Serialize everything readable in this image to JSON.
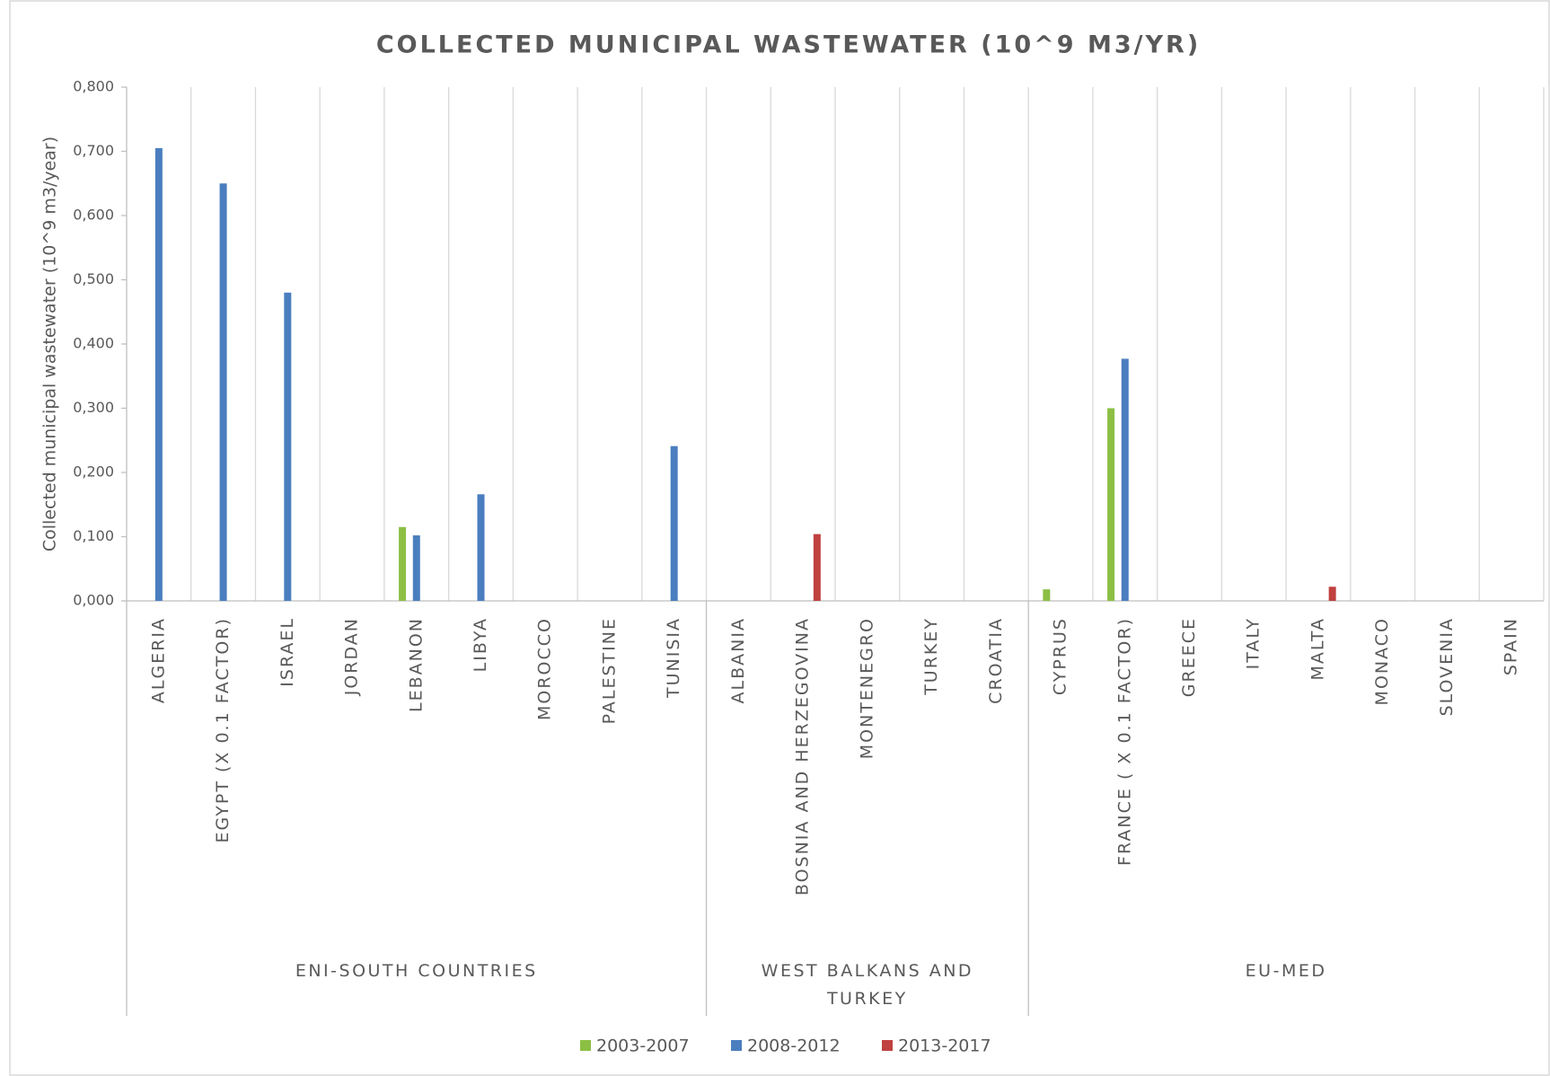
{
  "chart_data": {
    "type": "bar",
    "title": "COLLECTED  MUNICIPAL  WASTEWATER  (10^9  M3/YR)",
    "y_label": "Collected municipal wastewater (10^9 m3/year)",
    "groups": [
      {
        "name": "ENI-SOUTH COUNTRIES",
        "categories": [
          "ALGERIA",
          "EGYPT (X 0.1 FACTOR)",
          "ISRAEL",
          "JORDAN",
          "LEBANON",
          "LIBYA",
          "MOROCCO",
          "PALESTINE",
          "TUNISIA"
        ]
      },
      {
        "name": "WEST BALKANS AND TURKEY",
        "categories": [
          "ALBANIA",
          "BOSNIA AND HERZEGOVINA",
          "MONTENEGRO",
          "TURKEY",
          "CROATIA"
        ]
      },
      {
        "name": "EU-MED",
        "categories": [
          "CYPRUS",
          "FRANCE ( X 0.1 FACTOR)",
          "GREECE",
          "ITALY",
          "MALTA",
          "MONACO",
          "SLOVENIA",
          "SPAIN"
        ]
      }
    ],
    "series": [
      {
        "name": "2003-2007",
        "color": "#8cbf44",
        "values": [
          null,
          null,
          null,
          null,
          0.115,
          null,
          null,
          null,
          null,
          null,
          null,
          null,
          null,
          null,
          0.018,
          0.3,
          null,
          null,
          null,
          null,
          null,
          null
        ]
      },
      {
        "name": "2008-2012",
        "color": "#4a7ebf",
        "values": [
          0.705,
          0.65,
          0.48,
          null,
          0.102,
          0.166,
          null,
          null,
          0.241,
          null,
          null,
          null,
          null,
          null,
          null,
          0.377,
          null,
          null,
          null,
          null,
          null,
          null
        ]
      },
      {
        "name": "2013-2017",
        "color": "#c0413f",
        "values": [
          null,
          null,
          null,
          null,
          null,
          null,
          null,
          null,
          null,
          null,
          0.104,
          null,
          null,
          null,
          null,
          null,
          null,
          null,
          0.022,
          null,
          null,
          null
        ]
      }
    ],
    "ylim": [
      0,
      0.8
    ],
    "yticks": [
      {
        "value": 0,
        "label": "0,000"
      },
      {
        "value": 0.1,
        "label": "0,100"
      },
      {
        "value": 0.2,
        "label": "0,200"
      },
      {
        "value": 0.3,
        "label": "0,300"
      },
      {
        "value": 0.4,
        "label": "0,400"
      },
      {
        "value": 0.5,
        "label": "0,500"
      },
      {
        "value": 0.6,
        "label": "0,600"
      },
      {
        "value": 0.7,
        "label": "0,700"
      },
      {
        "value": 0.8,
        "label": "0,800"
      }
    ],
    "grid": true,
    "legend": "bottom"
  }
}
